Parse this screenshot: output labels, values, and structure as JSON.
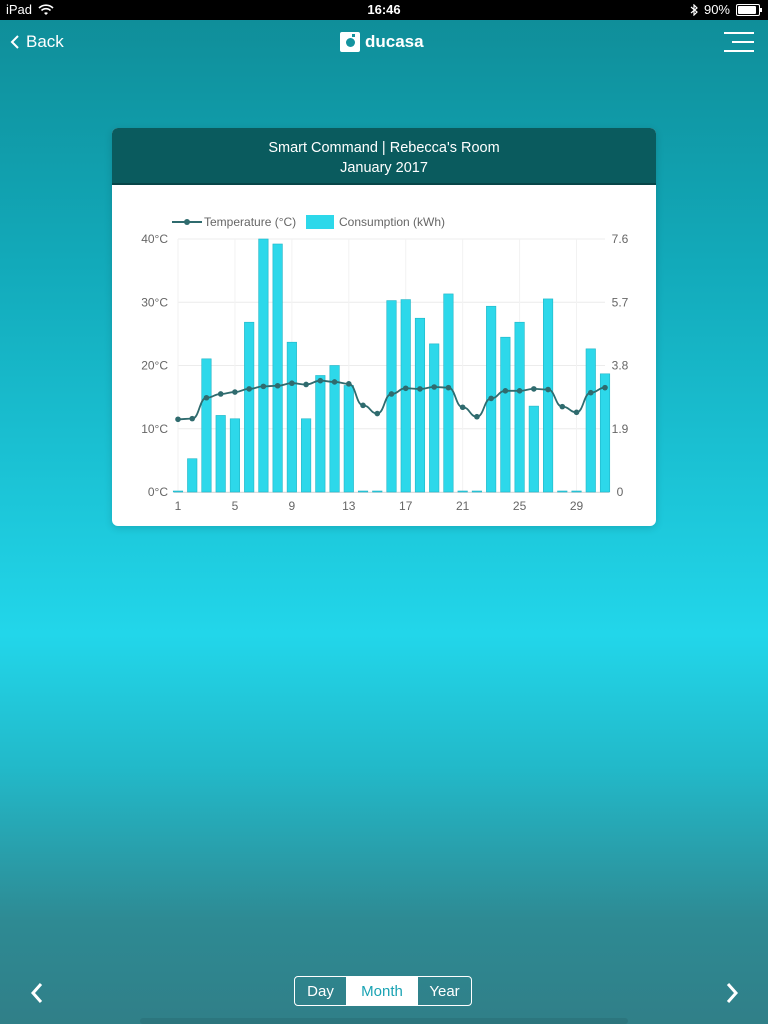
{
  "status_bar": {
    "device": "iPad",
    "time": "16:46",
    "battery": "90%",
    "battery_level": 0.9
  },
  "nav": {
    "back_label": "Back",
    "logo_text": "ducasa"
  },
  "card": {
    "title": "Smart Command | Rebecca's Room",
    "subtitle": "January 2017"
  },
  "chart_data": {
    "type": "bar",
    "legend": [
      "Temperature (°C)",
      "Consumption (kWh)"
    ],
    "legend_position": "top",
    "grid": true,
    "x": [
      1,
      2,
      3,
      4,
      5,
      6,
      7,
      8,
      9,
      10,
      11,
      12,
      13,
      14,
      15,
      16,
      17,
      18,
      19,
      20,
      21,
      22,
      23,
      24,
      25,
      26,
      27,
      28,
      29,
      30,
      31
    ],
    "x_tick_labels": [
      "1",
      "5",
      "9",
      "13",
      "17",
      "21",
      "25",
      "29"
    ],
    "x_tick_values": [
      1,
      5,
      9,
      13,
      17,
      21,
      25,
      29
    ],
    "y_left": {
      "tick_labels": [
        "0°C",
        "10°C",
        "20°C",
        "30°C",
        "40°C"
      ],
      "range": [
        0,
        40
      ]
    },
    "y_right": {
      "tick_labels": [
        "0",
        "1.9",
        "3.8",
        "5.7",
        "7.6"
      ],
      "range": [
        0,
        7.6
      ]
    },
    "series": [
      {
        "name": "Consumption (kWh)",
        "kind": "bar",
        "axis": "right",
        "color": "#2dd8ea",
        "values": [
          0,
          1.0,
          4.0,
          2.3,
          2.2,
          5.1,
          7.6,
          7.45,
          4.5,
          2.2,
          3.5,
          3.8,
          3.2,
          0,
          0,
          5.75,
          5.78,
          5.22,
          4.45,
          5.95,
          0,
          0,
          5.58,
          4.65,
          5.1,
          2.58,
          5.8,
          0,
          0,
          4.3,
          3.55
        ]
      },
      {
        "name": "Temperature (°C)",
        "kind": "line",
        "axis": "left",
        "color": "#2f6b6e",
        "values": [
          11.5,
          11.6,
          14.9,
          15.5,
          15.8,
          16.3,
          16.7,
          16.8,
          17.2,
          17.0,
          17.6,
          17.4,
          17.1,
          13.7,
          12.4,
          15.5,
          16.4,
          16.3,
          16.6,
          16.5,
          13.4,
          11.9,
          14.8,
          16.0,
          16.0,
          16.3,
          16.2,
          13.5,
          12.6,
          15.7,
          16.5
        ]
      }
    ]
  },
  "segments": {
    "day": "Day",
    "month": "Month",
    "year": "Year",
    "selected": "Month"
  },
  "colors": {
    "header": "#0a5b5e",
    "bar": "#2dd8ea",
    "line": "#2f6b6e",
    "accent": "#1aa3b3"
  },
  "icons": {
    "wifi": "wifi-icon",
    "bluetooth": "bluetooth-icon",
    "battery": "battery-icon",
    "back": "chevron-left-icon",
    "menu": "menu-icon",
    "prev": "chevron-left-icon",
    "next": "chevron-right-icon"
  }
}
